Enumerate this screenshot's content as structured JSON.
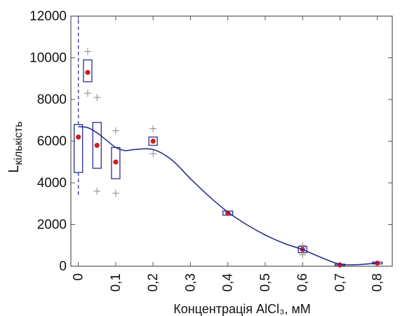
{
  "chart_data": {
    "type": "box",
    "xlabel": "Концентрація AlCl₃, мМ",
    "ylabel_main": "L",
    "ylabel_sub": "кількість",
    "xlim": [
      -0.02,
      0.84
    ],
    "ylim": [
      0,
      12000
    ],
    "x_ticks": [
      0,
      0.1,
      0.2,
      0.3,
      0.4,
      0.5,
      0.6,
      0.7,
      0.8
    ],
    "x_tick_labels": [
      "0",
      "0,1",
      "0,2",
      "0,3",
      "0,4",
      "0,5",
      "0,6",
      "0,7",
      "0,8"
    ],
    "y_ticks": [
      0,
      2000,
      4000,
      6000,
      8000,
      10000,
      12000
    ],
    "y_tick_labels": [
      "0",
      "2000",
      "4000",
      "6000",
      "8000",
      "10000",
      "12000"
    ],
    "grid": false,
    "colors": {
      "box": "#2b2f8f",
      "median": "#cc1f1f",
      "curve": "#2b2f8f",
      "outlier": "#888888",
      "whisker": "#3a3fa8"
    },
    "boxes": [
      {
        "x": 0.0,
        "median": 6200,
        "q1": 4500,
        "q3": 6800,
        "whisker_low": 3300,
        "whisker_high": 12000,
        "outliers": []
      },
      {
        "x": 0.025,
        "median": 9300,
        "q1": 8850,
        "q3": 9900,
        "outliers": [
          10300,
          8300
        ]
      },
      {
        "x": 0.05,
        "median": 5800,
        "q1": 4700,
        "q3": 6900,
        "outliers": [
          8100,
          3600
        ]
      },
      {
        "x": 0.1,
        "median": 5000,
        "q1": 4200,
        "q3": 5700,
        "outliers": [
          6500,
          3500
        ]
      },
      {
        "x": 0.2,
        "median": 6000,
        "q1": 5800,
        "q3": 6200,
        "outliers": [
          6600,
          5400
        ]
      },
      {
        "x": 0.4,
        "median": 2550,
        "q1": 2450,
        "q3": 2650,
        "outliers": []
      },
      {
        "x": 0.6,
        "median": 800,
        "q1": 650,
        "q3": 950,
        "outliers": [
          1000,
          550
        ]
      },
      {
        "x": 0.7,
        "median": 60,
        "q1": 30,
        "q3": 100,
        "outliers": []
      },
      {
        "x": 0.8,
        "median": 150,
        "q1": 110,
        "q3": 200,
        "outliers": []
      }
    ],
    "curve": {
      "name": "fit",
      "x": [
        0.0,
        0.025,
        0.05,
        0.075,
        0.1,
        0.125,
        0.15,
        0.2,
        0.25,
        0.3,
        0.35,
        0.4,
        0.45,
        0.5,
        0.55,
        0.6,
        0.65,
        0.7,
        0.75,
        0.8
      ],
      "y": [
        6700,
        6650,
        6400,
        6050,
        5700,
        5550,
        5600,
        5600,
        5100,
        4200,
        3350,
        2600,
        2000,
        1500,
        1100,
        800,
        420,
        100,
        80,
        160
      ]
    }
  }
}
